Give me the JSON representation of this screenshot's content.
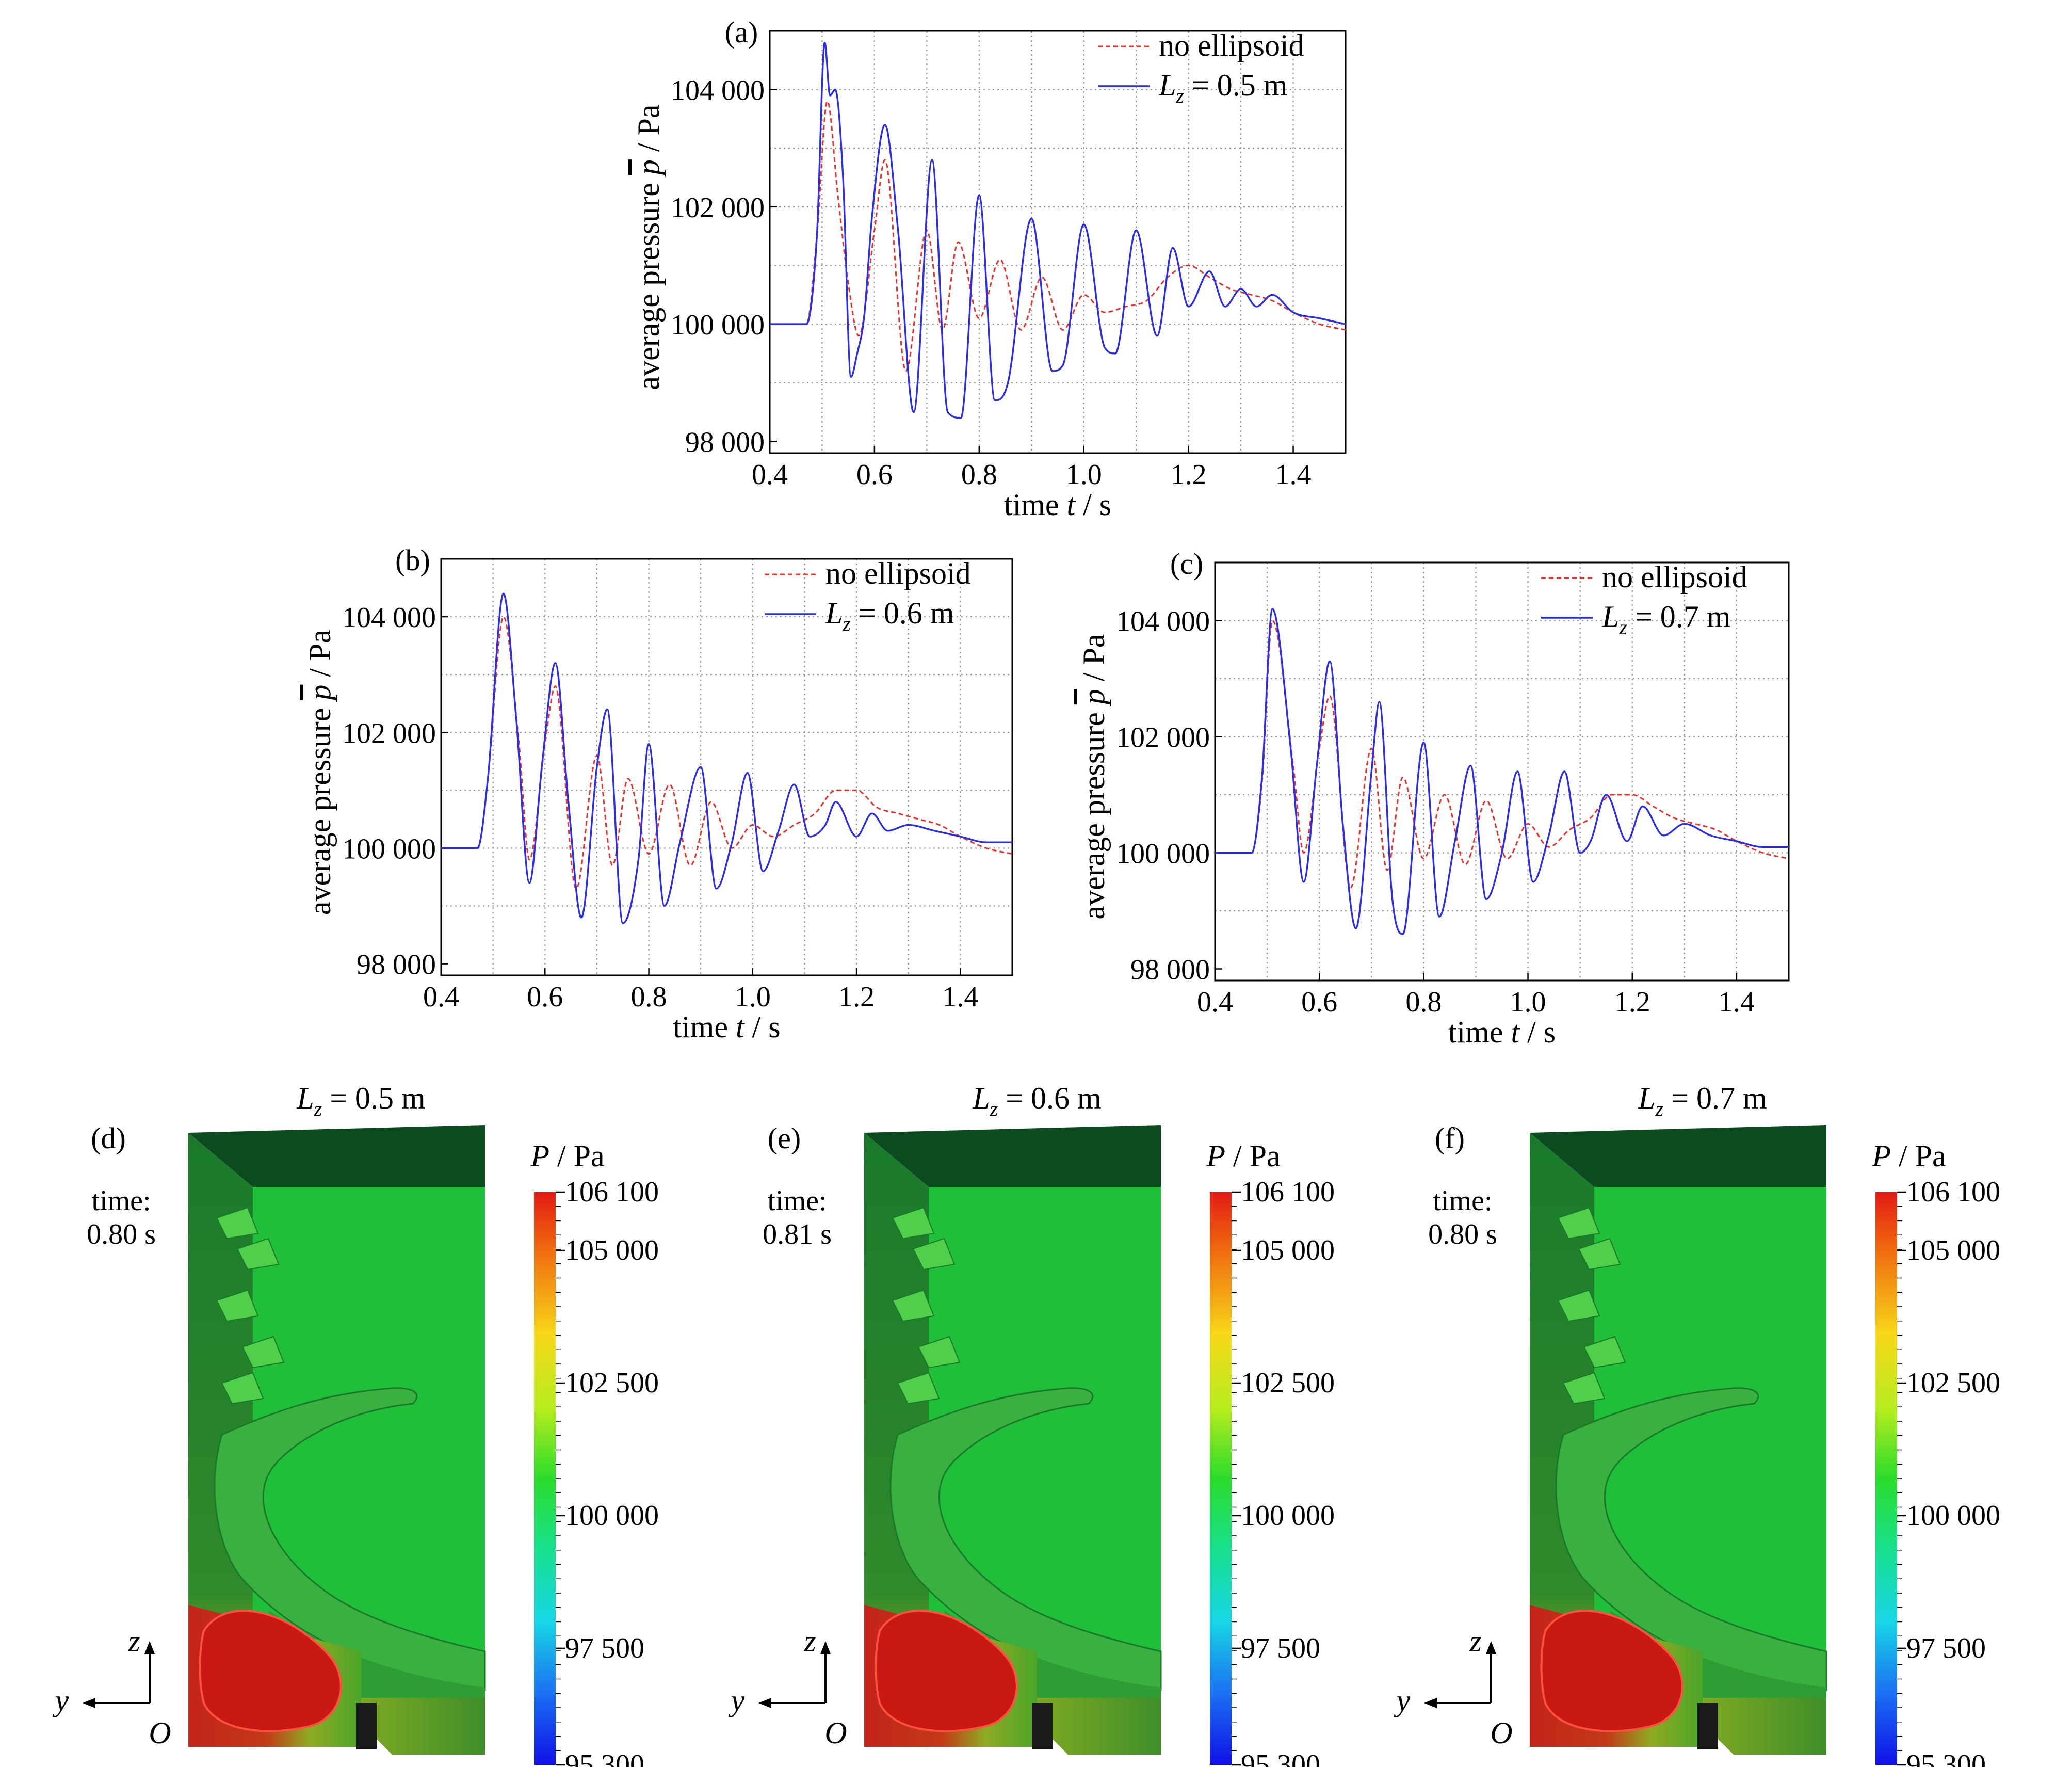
{
  "figure": {
    "colors": {
      "no_ellipsoid": "#e8322b",
      "ellipsoid": "#2a2ee6",
      "grid": "#9a9a9a",
      "domain_green": "#1fbf3a",
      "domain_dark": "#0c4a1f",
      "high_pressure_red": "#c81a12"
    }
  },
  "chart_data": [
    {
      "type": "line",
      "panel_label": "(a)",
      "xlabel_pre": "time ",
      "xlabel_var": "t",
      "xlabel_unit": " / s",
      "ylabel_pre": "average pressure ",
      "ylabel_var": "p",
      "ylabel_unit": " / Pa",
      "xlim": [
        0.4,
        1.5
      ],
      "ylim": [
        97800,
        105000
      ],
      "xticks": [
        0.4,
        0.6,
        0.8,
        1.0,
        1.2,
        1.4
      ],
      "xtick_labels": [
        "0.4",
        "0.6",
        "0.8",
        "1.0",
        "1.2",
        "1.4"
      ],
      "yticks": [
        98000,
        100000,
        102000,
        104000
      ],
      "ytick_labels": [
        "98 000",
        "100 000",
        "102 000",
        "104 000"
      ],
      "grid": true,
      "legend_position": "top-right",
      "series": [
        {
          "name": "no ellipsoid",
          "style": "dashed",
          "color": "#e8322b",
          "x": [
            0.4,
            0.47,
            0.49,
            0.51,
            0.53,
            0.55,
            0.57,
            0.6,
            0.62,
            0.66,
            0.7,
            0.73,
            0.76,
            0.8,
            0.84,
            0.88,
            0.92,
            0.96,
            1.0,
            1.04,
            1.08,
            1.12,
            1.16,
            1.2,
            1.24,
            1.28,
            1.32,
            1.36,
            1.4,
            1.45,
            1.5
          ],
          "y": [
            100000,
            100000,
            101500,
            103800,
            102200,
            100700,
            99800,
            101600,
            102800,
            99200,
            101600,
            99900,
            101400,
            100100,
            101100,
            99900,
            100800,
            99900,
            100500,
            100200,
            100300,
            100400,
            100800,
            101000,
            100800,
            100600,
            100500,
            100400,
            100200,
            100000,
            99900
          ]
        },
        {
          "name": "L_z = 0.5 m",
          "name_parts": [
            "L",
            "z",
            " = 0.5 m"
          ],
          "style": "solid",
          "color": "#2a2ee6",
          "x": [
            0.4,
            0.47,
            0.49,
            0.505,
            0.515,
            0.525,
            0.54,
            0.555,
            0.567,
            0.58,
            0.595,
            0.62,
            0.645,
            0.675,
            0.71,
            0.74,
            0.765,
            0.8,
            0.83,
            0.855,
            0.9,
            0.94,
            0.96,
            1.0,
            1.04,
            1.06,
            1.1,
            1.14,
            1.17,
            1.2,
            1.24,
            1.27,
            1.3,
            1.33,
            1.36,
            1.4,
            1.45,
            1.5
          ],
          "y": [
            100000,
            100000,
            101500,
            104800,
            103900,
            104000,
            102500,
            99100,
            99500,
            100100,
            101800,
            103400,
            101600,
            98500,
            102800,
            98500,
            98400,
            102200,
            98700,
            99000,
            101800,
            99200,
            99300,
            101700,
            99600,
            99500,
            101600,
            99800,
            101300,
            100300,
            100900,
            100300,
            100600,
            100300,
            100500,
            100200,
            100100,
            100000
          ]
        }
      ]
    },
    {
      "type": "line",
      "panel_label": "(b)",
      "xlabel_pre": "time ",
      "xlabel_var": "t",
      "xlabel_unit": " / s",
      "ylabel_pre": "average pressure ",
      "ylabel_var": "p",
      "ylabel_unit": " / Pa",
      "xlim": [
        0.4,
        1.5
      ],
      "ylim": [
        97800,
        105000
      ],
      "xticks": [
        0.4,
        0.6,
        0.8,
        1.0,
        1.2,
        1.4
      ],
      "xtick_labels": [
        "0.4",
        "0.6",
        "0.8",
        "1.0",
        "1.2",
        "1.4"
      ],
      "yticks": [
        98000,
        100000,
        102000,
        104000
      ],
      "ytick_labels": [
        "98 000",
        "100 000",
        "102 000",
        "104 000"
      ],
      "grid": true,
      "legend_position": "top-right",
      "series": [
        {
          "name": "no ellipsoid",
          "style": "dashed",
          "color": "#e8322b",
          "x": [
            0.4,
            0.47,
            0.49,
            0.52,
            0.55,
            0.57,
            0.6,
            0.62,
            0.66,
            0.7,
            0.73,
            0.76,
            0.8,
            0.84,
            0.88,
            0.92,
            0.96,
            1.0,
            1.04,
            1.08,
            1.12,
            1.16,
            1.2,
            1.24,
            1.28,
            1.32,
            1.36,
            1.4,
            1.45,
            1.5
          ],
          "y": [
            100000,
            100000,
            101200,
            104000,
            101800,
            99800,
            101800,
            102800,
            99300,
            101600,
            99700,
            101200,
            99900,
            101100,
            99700,
            100800,
            100000,
            100400,
            100200,
            100400,
            100600,
            101000,
            101000,
            100700,
            100600,
            100500,
            100400,
            100200,
            100000,
            99900
          ]
        },
        {
          "name": "L_z = 0.6 m",
          "name_parts": [
            "L",
            "z",
            " = 0.6 m"
          ],
          "style": "solid",
          "color": "#2a2ee6",
          "x": [
            0.4,
            0.47,
            0.49,
            0.52,
            0.545,
            0.57,
            0.595,
            0.62,
            0.645,
            0.67,
            0.7,
            0.72,
            0.75,
            0.78,
            0.8,
            0.83,
            0.86,
            0.9,
            0.93,
            0.96,
            0.99,
            1.02,
            1.05,
            1.08,
            1.11,
            1.14,
            1.16,
            1.2,
            1.23,
            1.26,
            1.3,
            1.35,
            1.4,
            1.45,
            1.5
          ],
          "y": [
            100000,
            100000,
            101200,
            104400,
            102200,
            99400,
            101500,
            103200,
            100800,
            98800,
            101400,
            102400,
            98700,
            99800,
            101800,
            99000,
            100100,
            101400,
            99300,
            100100,
            101300,
            99600,
            100300,
            101100,
            100200,
            100400,
            100800,
            100200,
            100600,
            100300,
            100400,
            100300,
            100200,
            100100,
            100100
          ]
        }
      ]
    },
    {
      "type": "line",
      "panel_label": "(c)",
      "xlabel_pre": "time ",
      "xlabel_var": "t",
      "xlabel_unit": " / s",
      "ylabel_pre": "average pressure ",
      "ylabel_var": "p",
      "ylabel_unit": " / Pa",
      "xlim": [
        0.4,
        1.5
      ],
      "ylim": [
        97800,
        105000
      ],
      "xticks": [
        0.4,
        0.6,
        0.8,
        1.0,
        1.2,
        1.4
      ],
      "xtick_labels": [
        "0.4",
        "0.6",
        "0.8",
        "1.0",
        "1.2",
        "1.4"
      ],
      "yticks": [
        98000,
        100000,
        102000,
        104000
      ],
      "ytick_labels": [
        "98 000",
        "100 000",
        "102 000",
        "104 000"
      ],
      "grid": true,
      "legend_position": "top-right",
      "series": [
        {
          "name": "no ellipsoid",
          "style": "dashed",
          "color": "#e8322b",
          "x": [
            0.4,
            0.47,
            0.49,
            0.51,
            0.55,
            0.57,
            0.6,
            0.62,
            0.66,
            0.7,
            0.73,
            0.76,
            0.8,
            0.84,
            0.88,
            0.92,
            0.96,
            1.0,
            1.04,
            1.08,
            1.12,
            1.16,
            1.2,
            1.24,
            1.28,
            1.32,
            1.36,
            1.4,
            1.45,
            1.5
          ],
          "y": [
            100000,
            100000,
            101200,
            104000,
            101500,
            100000,
            101800,
            102700,
            99400,
            101800,
            99700,
            101300,
            99900,
            101000,
            99800,
            100900,
            99900,
            100500,
            100100,
            100400,
            100600,
            101000,
            101000,
            100800,
            100600,
            100500,
            100400,
            100200,
            100000,
            99900
          ]
        },
        {
          "name": "L_z = 0.7 m",
          "name_parts": [
            "L",
            "z",
            " = 0.7 m"
          ],
          "style": "solid",
          "color": "#2a2ee6",
          "x": [
            0.4,
            0.47,
            0.49,
            0.51,
            0.545,
            0.57,
            0.595,
            0.62,
            0.645,
            0.67,
            0.7,
            0.715,
            0.74,
            0.76,
            0.8,
            0.83,
            0.86,
            0.89,
            0.92,
            0.95,
            0.98,
            1.01,
            1.04,
            1.07,
            1.1,
            1.12,
            1.15,
            1.19,
            1.22,
            1.26,
            1.3,
            1.35,
            1.4,
            1.45,
            1.5
          ],
          "y": [
            100000,
            100000,
            101300,
            104200,
            101800,
            99500,
            101500,
            103300,
            100500,
            98700,
            101400,
            102600,
            99200,
            98600,
            101900,
            98900,
            100200,
            101500,
            99200,
            100000,
            101400,
            99500,
            100300,
            101400,
            100000,
            100200,
            101000,
            100200,
            100800,
            100300,
            100500,
            100300,
            100200,
            100100,
            100100
          ]
        }
      ]
    }
  ],
  "contour_panels": [
    {
      "label": "(d)",
      "title_var": "L",
      "title_sub": "z",
      "title_rest": " = 0.5 m",
      "time_label": "time:",
      "time_value": "0.80 s"
    },
    {
      "label": "(e)",
      "title_var": "L",
      "title_sub": "z",
      "title_rest": " = 0.6 m",
      "time_label": "time:",
      "time_value": "0.81 s"
    },
    {
      "label": "(f)",
      "title_var": "L",
      "title_sub": "z",
      "title_rest": " = 0.7 m",
      "time_label": "time:",
      "time_value": "0.80 s"
    }
  ],
  "colorbar": {
    "title_var": "P",
    "title_unit": " / Pa",
    "tick_labels": [
      "106 100",
      "105 000",
      "102 500",
      "100 000",
      "97 500",
      "95 300"
    ],
    "tick_values": [
      106100,
      105000,
      102500,
      100000,
      97500,
      95300
    ],
    "range": [
      95300,
      106100
    ]
  },
  "axes_triad": {
    "z_label": "z",
    "y_label": "y",
    "origin_label": "O"
  }
}
